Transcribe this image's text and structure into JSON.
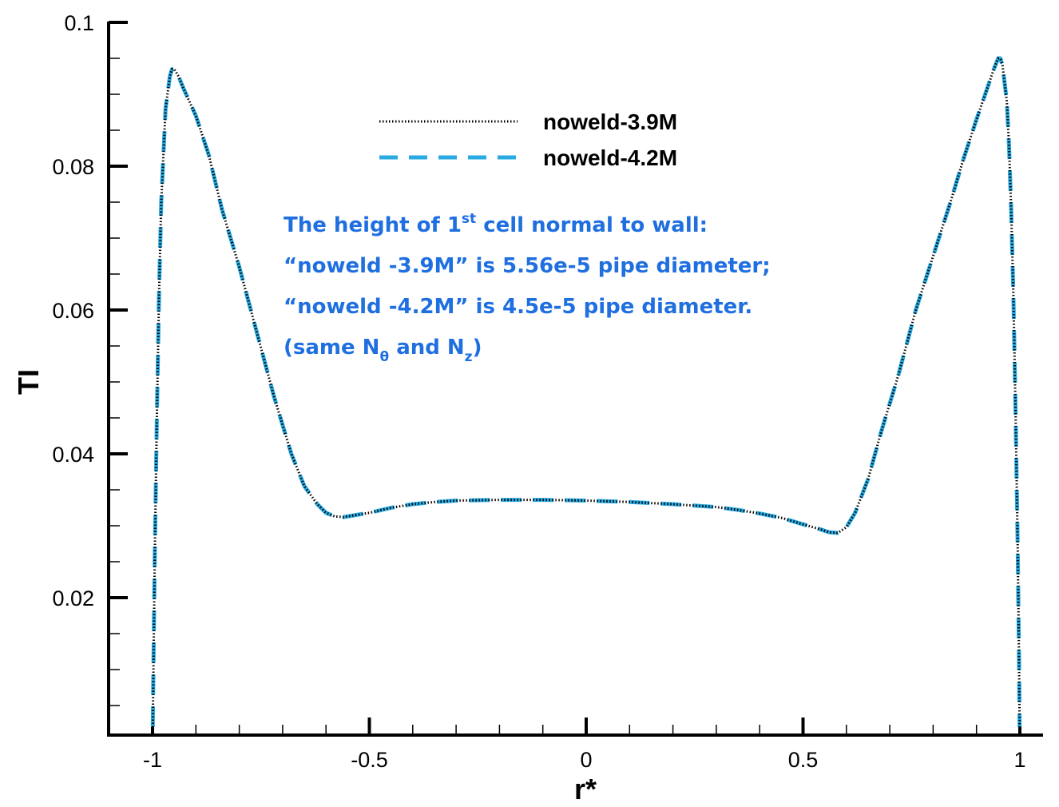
{
  "chart_data": {
    "type": "line",
    "xlabel": "r*",
    "ylabel": "TI",
    "xlim": [
      -1.1,
      1.1
    ],
    "ylim": [
      0,
      0.1
    ],
    "xticks": [
      "-1",
      "-0.5",
      "0",
      "0.5",
      "1"
    ],
    "yticks": [
      "0.02",
      "0.04",
      "0.06",
      "0.08",
      "0.1"
    ],
    "grid": false,
    "legend_position": "top-center",
    "series": [
      {
        "name": "noweld-3.9M",
        "color": "#000000",
        "style": "dotted",
        "x": [
          -0.9995,
          -0.998,
          -0.995,
          -0.99,
          -0.985,
          -0.98,
          -0.97,
          -0.96,
          -0.955,
          -0.95,
          -0.94,
          -0.93,
          -0.9,
          -0.87,
          -0.84,
          -0.8,
          -0.76,
          -0.72,
          -0.68,
          -0.65,
          -0.62,
          -0.6,
          -0.58,
          -0.56,
          -0.54,
          -0.5,
          -0.45,
          -0.4,
          -0.35,
          -0.3,
          -0.2,
          -0.1,
          0.0,
          0.1,
          0.2,
          0.3,
          0.35,
          0.4,
          0.45,
          0.5,
          0.54,
          0.56,
          0.58,
          0.6,
          0.62,
          0.65,
          0.68,
          0.72,
          0.76,
          0.8,
          0.84,
          0.87,
          0.9,
          0.92,
          0.94,
          0.95,
          0.955,
          0.96,
          0.97,
          0.975,
          0.98,
          0.985,
          0.99,
          0.995,
          0.998,
          0.9995
        ],
        "y": [
          0.002,
          0.01,
          0.025,
          0.045,
          0.062,
          0.075,
          0.088,
          0.0925,
          0.0935,
          0.0935,
          0.0925,
          0.091,
          0.087,
          0.0815,
          0.074,
          0.066,
          0.057,
          0.048,
          0.04,
          0.0355,
          0.033,
          0.0318,
          0.0313,
          0.0312,
          0.0314,
          0.0318,
          0.0325,
          0.033,
          0.0333,
          0.0335,
          0.0336,
          0.0336,
          0.0335,
          0.0333,
          0.033,
          0.0326,
          0.0322,
          0.0317,
          0.0311,
          0.0302,
          0.0295,
          0.0291,
          0.029,
          0.0298,
          0.0318,
          0.0365,
          0.043,
          0.051,
          0.06,
          0.0675,
          0.075,
          0.081,
          0.0865,
          0.09,
          0.0935,
          0.095,
          0.095,
          0.094,
          0.089,
          0.083,
          0.074,
          0.062,
          0.046,
          0.027,
          0.012,
          0.002
        ]
      },
      {
        "name": "noweld-4.2M",
        "color": "#29abe2",
        "style": "dashed",
        "x": [
          -0.9995,
          -0.998,
          -0.995,
          -0.99,
          -0.985,
          -0.98,
          -0.97,
          -0.96,
          -0.955,
          -0.95,
          -0.94,
          -0.93,
          -0.9,
          -0.87,
          -0.84,
          -0.8,
          -0.76,
          -0.72,
          -0.68,
          -0.65,
          -0.62,
          -0.6,
          -0.58,
          -0.56,
          -0.54,
          -0.5,
          -0.45,
          -0.4,
          -0.35,
          -0.3,
          -0.2,
          -0.1,
          0.0,
          0.1,
          0.2,
          0.3,
          0.35,
          0.4,
          0.45,
          0.5,
          0.54,
          0.56,
          0.58,
          0.6,
          0.62,
          0.65,
          0.68,
          0.72,
          0.76,
          0.8,
          0.84,
          0.87,
          0.9,
          0.92,
          0.94,
          0.95,
          0.955,
          0.96,
          0.97,
          0.975,
          0.98,
          0.985,
          0.99,
          0.995,
          0.998,
          0.9995
        ],
        "y": [
          0.002,
          0.01,
          0.025,
          0.045,
          0.062,
          0.075,
          0.088,
          0.0925,
          0.0935,
          0.0935,
          0.0925,
          0.091,
          0.087,
          0.0815,
          0.074,
          0.066,
          0.057,
          0.048,
          0.04,
          0.0355,
          0.033,
          0.0318,
          0.0313,
          0.0312,
          0.0314,
          0.0318,
          0.0325,
          0.033,
          0.0333,
          0.0335,
          0.0336,
          0.0336,
          0.0335,
          0.0333,
          0.033,
          0.0326,
          0.0322,
          0.0317,
          0.0311,
          0.0302,
          0.0295,
          0.0291,
          0.029,
          0.0298,
          0.0318,
          0.0365,
          0.043,
          0.051,
          0.06,
          0.0675,
          0.075,
          0.081,
          0.0865,
          0.09,
          0.0935,
          0.095,
          0.095,
          0.094,
          0.089,
          0.083,
          0.074,
          0.062,
          0.046,
          0.027,
          0.012,
          0.002
        ]
      }
    ],
    "annotation": {
      "line1_pre": "The height of 1",
      "line1_sup": "st",
      "line1_post": " cell normal to wall:",
      "line2": "“noweld -3.9M” is 5.56e-5 pipe diameter;",
      "line3": "“noweld -4.2M” is 4.5e-5 pipe diameter.",
      "line4_a": "(same N",
      "line4_sub1": "θ",
      "line4_b": "  and N",
      "line4_sub2": "z",
      "line4_c": ")",
      "color": "#1f6fe0"
    }
  }
}
